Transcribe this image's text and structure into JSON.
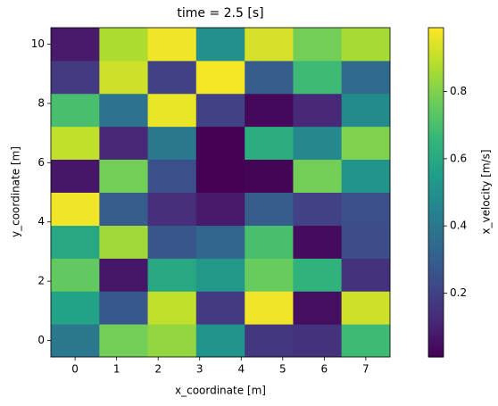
{
  "chart_data": {
    "type": "heatmap",
    "title": "time = 2.5 [s]",
    "x_label": "x_coordinate [m]",
    "y_label": "y_coordinate [m]",
    "colorbar_label": "x_velocity [m/s]",
    "colormap": "viridis",
    "x": [
      0,
      1.17,
      2.33,
      3.5,
      4.67,
      5.83,
      7
    ],
    "y": [
      0,
      1.11,
      2.22,
      3.33,
      4.44,
      5.56,
      6.67,
      7.78,
      8.89,
      10
    ],
    "values": [
      [
        0.4,
        0.78,
        0.83,
        0.52,
        0.17,
        0.15,
        0.68
      ],
      [
        0.57,
        0.28,
        0.9,
        0.18,
        0.97,
        0.05,
        0.92
      ],
      [
        0.75,
        0.07,
        0.6,
        0.53,
        0.76,
        0.64,
        0.15
      ],
      [
        0.6,
        0.85,
        0.27,
        0.33,
        0.7,
        0.04,
        0.24
      ],
      [
        0.97,
        0.3,
        0.14,
        0.08,
        0.3,
        0.2,
        0.25
      ],
      [
        0.07,
        0.78,
        0.25,
        0.01,
        0.02,
        0.78,
        0.52
      ],
      [
        0.9,
        0.12,
        0.4,
        0.01,
        0.62,
        0.47,
        0.8
      ],
      [
        0.7,
        0.38,
        0.96,
        0.2,
        0.03,
        0.12,
        0.48
      ],
      [
        0.18,
        0.92,
        0.2,
        0.98,
        0.3,
        0.68,
        0.35
      ],
      [
        0.08,
        0.87,
        0.97,
        0.5,
        0.93,
        0.78,
        0.86
      ]
    ],
    "xlim": [
      -0.583,
      7.583
    ],
    "ylim": [
      -0.556,
      10.556
    ],
    "xticks": [
      0,
      1,
      2,
      3,
      4,
      5,
      6,
      7
    ],
    "yticks": [
      0,
      2,
      4,
      6,
      8,
      10
    ],
    "clim": [
      0.01,
      0.99
    ],
    "cticks": [
      0.2,
      0.4,
      0.6,
      0.8
    ]
  }
}
